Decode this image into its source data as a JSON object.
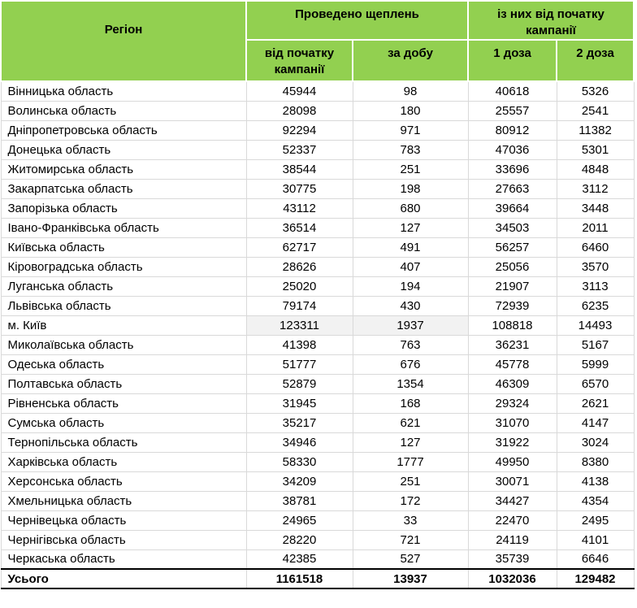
{
  "colors": {
    "header_green": "#92d050",
    "grid_border": "#d9d9d9",
    "highlight_gray": "#f2f2f2",
    "total_border": "#000000"
  },
  "table": {
    "headers": {
      "region": "Регіон",
      "group_vaccinations": "Проведено щеплень",
      "group_since_start": "із них від початку кампанії",
      "sub_since_start": "від початку кампанії",
      "sub_per_day": "за добу",
      "sub_dose1": "1 доза",
      "sub_dose2": "2 доза"
    },
    "rows": [
      {
        "region": "Вінницька область",
        "values": [
          "45944",
          "98",
          "40618",
          "5326"
        ]
      },
      {
        "region": "Волинська область",
        "values": [
          "28098",
          "180",
          "25557",
          "2541"
        ]
      },
      {
        "region": "Дніпропетровська область",
        "values": [
          "92294",
          "971",
          "80912",
          "11382"
        ]
      },
      {
        "region": "Донецька область",
        "values": [
          "52337",
          "783",
          "47036",
          "5301"
        ]
      },
      {
        "region": "Житомирська область",
        "values": [
          "38544",
          "251",
          "33696",
          "4848"
        ]
      },
      {
        "region": "Закарпатська область",
        "values": [
          "30775",
          "198",
          "27663",
          "3112"
        ]
      },
      {
        "region": "Запорізька область",
        "values": [
          "43112",
          "680",
          "39664",
          "3448"
        ]
      },
      {
        "region": "Івано-Франківська область",
        "values": [
          "36514",
          "127",
          "34503",
          "2011"
        ]
      },
      {
        "region": "Київська область",
        "values": [
          "62717",
          "491",
          "56257",
          "6460"
        ]
      },
      {
        "region": "Кіровоградська область",
        "values": [
          "28626",
          "407",
          "25056",
          "3570"
        ]
      },
      {
        "region": "Луганська область",
        "values": [
          "25020",
          "194",
          "21907",
          "3113"
        ]
      },
      {
        "region": "Львівська область",
        "values": [
          "79174",
          "430",
          "72939",
          "6235"
        ]
      },
      {
        "region": "м. Київ",
        "values": [
          "123311",
          "1937",
          "108818",
          "14493"
        ],
        "highlight": [
          0,
          1
        ]
      },
      {
        "region": "Миколаївська область",
        "values": [
          "41398",
          "763",
          "36231",
          "5167"
        ]
      },
      {
        "region": "Одеська область",
        "values": [
          "51777",
          "676",
          "45778",
          "5999"
        ]
      },
      {
        "region": "Полтавська область",
        "values": [
          "52879",
          "1354",
          "46309",
          "6570"
        ]
      },
      {
        "region": "Рівненська область",
        "values": [
          "31945",
          "168",
          "29324",
          "2621"
        ]
      },
      {
        "region": "Сумська область",
        "values": [
          "35217",
          "621",
          "31070",
          "4147"
        ]
      },
      {
        "region": "Тернопільська область",
        "values": [
          "34946",
          "127",
          "31922",
          "3024"
        ]
      },
      {
        "region": "Харківська область",
        "values": [
          "58330",
          "1777",
          "49950",
          "8380"
        ]
      },
      {
        "region": "Херсонська область",
        "values": [
          "34209",
          "251",
          "30071",
          "4138"
        ]
      },
      {
        "region": "Хмельницька область",
        "values": [
          "38781",
          "172",
          "34427",
          "4354"
        ]
      },
      {
        "region": "Чернівецька область",
        "values": [
          "24965",
          "33",
          "22470",
          "2495"
        ]
      },
      {
        "region": "Чернігівська область",
        "values": [
          "28220",
          "721",
          "24119",
          "4101"
        ]
      },
      {
        "region": "Черкаська область",
        "values": [
          "42385",
          "527",
          "35739",
          "6646"
        ]
      }
    ],
    "total": {
      "label": "Усього",
      "values": [
        "1161518",
        "13937",
        "1032036",
        "129482"
      ]
    }
  }
}
